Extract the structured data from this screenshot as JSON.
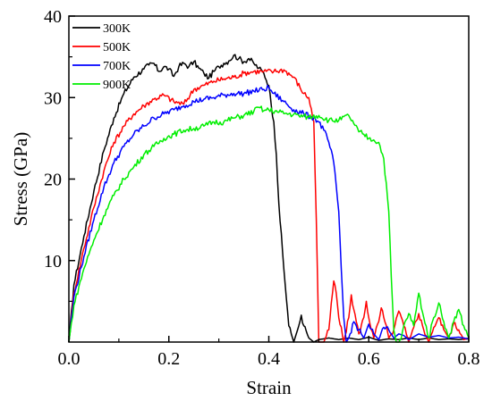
{
  "chart_data": {
    "type": "line",
    "title": "",
    "xlabel": "Strain",
    "ylabel": "Stress (GPa)",
    "xlim": [
      0.0,
      0.8
    ],
    "ylim": [
      0,
      40
    ],
    "xticks": [
      0.0,
      0.2,
      0.4,
      0.6,
      0.8
    ],
    "xtick_labels": [
      "0.0",
      "0.2",
      "0.4",
      "0.6",
      "0.8"
    ],
    "yticks": [
      10,
      20,
      30,
      40
    ],
    "ytick_labels": [
      "10",
      "20",
      "30",
      "40"
    ],
    "grid": false,
    "legend_position": "top-left",
    "series": [
      {
        "name": "300K",
        "color": "#000000",
        "x": [
          0,
          0.01,
          0.03,
          0.05,
          0.07,
          0.09,
          0.11,
          0.13,
          0.15,
          0.16,
          0.17,
          0.18,
          0.19,
          0.2,
          0.21,
          0.22,
          0.23,
          0.24,
          0.25,
          0.26,
          0.27,
          0.28,
          0.29,
          0.3,
          0.31,
          0.32,
          0.33,
          0.34,
          0.35,
          0.36,
          0.37,
          0.38,
          0.39,
          0.4,
          0.405,
          0.41,
          0.415,
          0.42,
          0.43,
          0.44,
          0.45,
          0.46,
          0.465,
          0.47,
          0.48,
          0.49,
          0.5,
          0.52,
          0.54,
          0.56,
          0.58,
          0.6,
          0.62,
          0.64,
          0.66,
          0.68,
          0.7,
          0.72,
          0.74,
          0.76,
          0.78,
          0.8
        ],
        "y": [
          0,
          7,
          13,
          18.5,
          23.5,
          27.5,
          30.5,
          32.5,
          33.5,
          34,
          34.2,
          33.2,
          33.8,
          33.5,
          32.6,
          33.8,
          34.2,
          33.8,
          34.4,
          33.6,
          33,
          32.4,
          33.2,
          33.8,
          34.2,
          34.5,
          35.2,
          34.8,
          34.4,
          34.8,
          34.2,
          33.6,
          33,
          31.5,
          29,
          27,
          23,
          17,
          9,
          2,
          0,
          2,
          3.3,
          2,
          0.5,
          0,
          0.3,
          0.5,
          0.3,
          0.5,
          0.3,
          0.6,
          0.2,
          0.4,
          0.3,
          0.5,
          0.3,
          0.5,
          0.3,
          0.4,
          0.3,
          0.4
        ]
      },
      {
        "name": "500K",
        "color": "#ff0000",
        "x": [
          0,
          0.01,
          0.03,
          0.05,
          0.07,
          0.09,
          0.11,
          0.13,
          0.15,
          0.17,
          0.19,
          0.21,
          0.23,
          0.25,
          0.27,
          0.29,
          0.31,
          0.33,
          0.35,
          0.37,
          0.39,
          0.41,
          0.43,
          0.45,
          0.47,
          0.48,
          0.49,
          0.495,
          0.5,
          0.505,
          0.51,
          0.52,
          0.53,
          0.535,
          0.54,
          0.55,
          0.56,
          0.565,
          0.57,
          0.58,
          0.59,
          0.595,
          0.6,
          0.61,
          0.62,
          0.625,
          0.63,
          0.64,
          0.65,
          0.66,
          0.67,
          0.68,
          0.69,
          0.7,
          0.71,
          0.72,
          0.73,
          0.74,
          0.75,
          0.76,
          0.77,
          0.78,
          0.79,
          0.8
        ],
        "y": [
          0,
          6,
          11.5,
          16.5,
          21,
          24.5,
          26.5,
          28,
          29,
          29.8,
          30.3,
          29.5,
          29.2,
          31,
          31.5,
          32,
          32.3,
          32.5,
          33,
          33.2,
          33.2,
          33.2,
          33.4,
          32.5,
          30.5,
          30,
          27,
          15,
          0,
          0,
          0,
          1.5,
          7.5,
          6,
          3,
          0,
          3,
          5.8,
          4,
          1,
          3,
          5,
          3,
          0.5,
          2.5,
          4.2,
          3,
          0.5,
          1.5,
          3.8,
          2,
          0,
          1.8,
          3.5,
          1.5,
          0,
          1.8,
          3,
          1.5,
          0.5,
          2.3,
          1.5,
          0.3,
          0.5
        ]
      },
      {
        "name": "700K",
        "color": "#0000ff",
        "x": [
          0,
          0.01,
          0.03,
          0.05,
          0.07,
          0.09,
          0.11,
          0.13,
          0.15,
          0.17,
          0.19,
          0.21,
          0.23,
          0.25,
          0.27,
          0.29,
          0.31,
          0.33,
          0.35,
          0.37,
          0.39,
          0.4,
          0.41,
          0.43,
          0.45,
          0.47,
          0.49,
          0.5,
          0.51,
          0.52,
          0.53,
          0.54,
          0.545,
          0.55,
          0.555,
          0.56,
          0.57,
          0.58,
          0.59,
          0.6,
          0.61,
          0.62,
          0.63,
          0.64,
          0.65,
          0.66,
          0.67,
          0.68,
          0.7,
          0.72,
          0.74,
          0.76,
          0.78,
          0.8
        ],
        "y": [
          0,
          5.5,
          10.5,
          15,
          19,
          22,
          24,
          25.5,
          26.5,
          27.5,
          28,
          28.5,
          29,
          29.5,
          29.8,
          30,
          30.3,
          30.5,
          30.5,
          30.8,
          31,
          31.2,
          30.5,
          29.5,
          28.5,
          28,
          27.5,
          27,
          26,
          24.5,
          22,
          16,
          9,
          3,
          0,
          0.5,
          2.5,
          1.5,
          0.5,
          2.2,
          1,
          0.3,
          1.8,
          1.5,
          0.5,
          1,
          0.8,
          0.3,
          1,
          0.6,
          0.8,
          0.5,
          0.6,
          0.4
        ]
      },
      {
        "name": "900K",
        "color": "#00ee00",
        "x": [
          0,
          0.01,
          0.03,
          0.05,
          0.07,
          0.09,
          0.11,
          0.13,
          0.15,
          0.17,
          0.19,
          0.21,
          0.23,
          0.25,
          0.27,
          0.29,
          0.31,
          0.33,
          0.35,
          0.37,
          0.38,
          0.39,
          0.4,
          0.42,
          0.44,
          0.46,
          0.48,
          0.5,
          0.52,
          0.54,
          0.56,
          0.57,
          0.58,
          0.59,
          0.6,
          0.61,
          0.62,
          0.63,
          0.64,
          0.645,
          0.65,
          0.655,
          0.66,
          0.665,
          0.67,
          0.68,
          0.69,
          0.7,
          0.71,
          0.72,
          0.73,
          0.74,
          0.75,
          0.76,
          0.77,
          0.78,
          0.79,
          0.8
        ],
        "y": [
          0,
          4.5,
          9,
          12.5,
          15.5,
          18,
          20,
          21.5,
          23,
          24,
          25,
          25.5,
          26,
          26.2,
          26.5,
          27,
          27,
          27.5,
          27.8,
          28.3,
          28.8,
          28.4,
          28.5,
          28.2,
          28,
          27.8,
          27.6,
          27.8,
          27.2,
          27.2,
          27.8,
          26.8,
          25.8,
          25.5,
          25,
          24.8,
          24.5,
          22.5,
          16,
          8,
          1.5,
          0,
          0,
          0.5,
          2,
          3.5,
          2,
          6,
          3,
          0.5,
          3,
          4.8,
          2.5,
          0.5,
          2.5,
          4,
          2,
          0.5
        ]
      }
    ]
  }
}
